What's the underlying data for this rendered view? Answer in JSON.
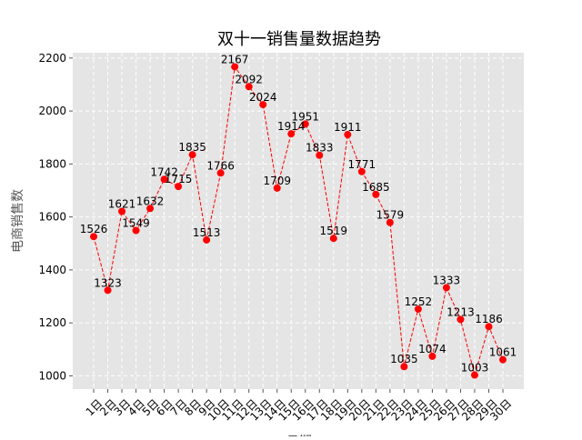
{
  "chart_data": {
    "type": "line",
    "title": "双十一销售量数据趋势",
    "xlabel": "日期",
    "ylabel": "电商销售数",
    "categories": [
      "1日",
      "2日",
      "3日",
      "4日",
      "5日",
      "6日",
      "7日",
      "8日",
      "9日",
      "10日",
      "11日",
      "12日",
      "13日",
      "14日",
      "15日",
      "16日",
      "17日",
      "18日",
      "19日",
      "20日",
      "21日",
      "22日",
      "23日",
      "24日",
      "25日",
      "26日",
      "27日",
      "28日",
      "29日",
      "30日"
    ],
    "series": [
      {
        "values": [
          1526,
          1323,
          1621,
          1549,
          1632,
          1742,
          1715,
          1835,
          1513,
          1766,
          2167,
          2092,
          2024,
          1709,
          1914,
          1951,
          1833,
          1519,
          1911,
          1771,
          1685,
          1579,
          1035,
          1252,
          1074,
          1333,
          1213,
          1003,
          1186,
          1061
        ]
      }
    ],
    "ylim": [
      950,
      2220
    ],
    "yticks": [
      "1000",
      "1200",
      "1400",
      "1600",
      "1800",
      "2000",
      "2200"
    ],
    "grid": true,
    "line_color": "#ff0000",
    "marker_color": "#ff0000",
    "background_color": "#e5e5e5",
    "grid_color": "#ffffff"
  }
}
